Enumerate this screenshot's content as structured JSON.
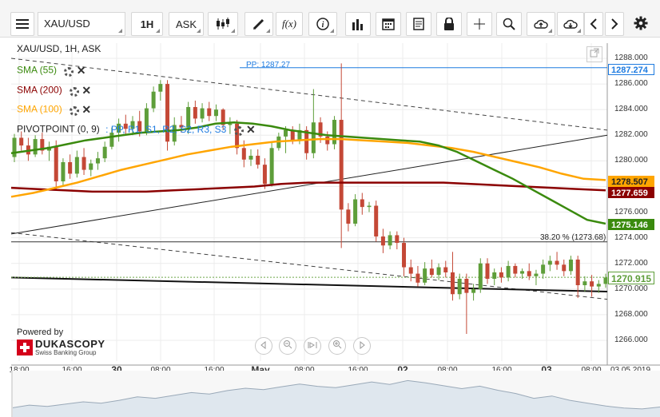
{
  "toolbar": {
    "menu_icon": "hamburger-icon",
    "symbol": "XAU/USD",
    "timeframe": "1H",
    "side": "ASK",
    "chart_type_icon": "candlestick-icon",
    "draw_icon": "pencil-icon",
    "fx_label": "f(x)",
    "info_icon": "info-icon",
    "volume_icon": "bar-volume-icon",
    "calendar_icon": "calendar-icon",
    "report_icon": "document-icon",
    "lock_icon": "lock-icon",
    "crosshair_icon": "crosshair-icon",
    "zoom_icon": "zoom-icon",
    "upload_icon": "cloud-upload-icon",
    "download_icon": "cloud-download-icon",
    "prev_icon": "chevron-left-icon",
    "next_icon": "chevron-right-icon",
    "settings_icon": "gear-icon"
  },
  "legend": {
    "title": "XAU/USD, 1H, ASK",
    "sma55": "SMA (55)",
    "sma200": "SMA (200)",
    "sma100": "SMA (100)",
    "pivot": "PIVOTPOINT (0, 9)",
    "pivot_items": ": PP, R1, S1, R2, S2, R3, S3"
  },
  "annotations": {
    "pp_label": "PP: 1287.27",
    "fib_label": "38.20 % (1273.68)"
  },
  "price_labels": {
    "pp": "1287.274",
    "sma100": "1278.507",
    "sma200": "1277.659",
    "sma55": "1275.146",
    "current": "1270.915"
  },
  "colors": {
    "sma55": "#3a8a0e",
    "sma200": "#8b0000",
    "sma100": "#ffa500",
    "pivot": "#1e7be0",
    "bull": "#5e9e3a",
    "bear": "#c44836"
  },
  "brand": {
    "powered_by": "Powered by",
    "name": "DUKASCOPY",
    "tagline": "Swiss Banking Group"
  },
  "y_axis": [
    "1288.000",
    "1286.000",
    "1284.000",
    "1282.000",
    "1280.000",
    "1278.000",
    "1276.000",
    "1274.000",
    "1272.000",
    "1270.000",
    "1268.000",
    "1266.000"
  ],
  "x_axis": [
    {
      "label": "18:00",
      "bold": false
    },
    {
      "label": "16:00",
      "bold": false
    },
    {
      "label": "30",
      "bold": true
    },
    {
      "label": "08:00",
      "bold": false
    },
    {
      "label": "16:00",
      "bold": false
    },
    {
      "label": "May",
      "bold": true
    },
    {
      "label": "08:00",
      "bold": false
    },
    {
      "label": "16:00",
      "bold": false
    },
    {
      "label": "02",
      "bold": true
    },
    {
      "label": "08:00",
      "bold": false
    },
    {
      "label": "16:00",
      "bold": false
    },
    {
      "label": "03",
      "bold": true
    },
    {
      "label": "08:00",
      "bold": false
    },
    {
      "label": "03.05.2019",
      "bold": false
    }
  ],
  "nav_buttons": [
    "scroll-left-icon",
    "zoom-out-icon",
    "fit-icon",
    "zoom-in-icon",
    "scroll-right-icon"
  ],
  "chart_data": {
    "type": "candlestick",
    "symbol": "XAU/USD",
    "interval": "1H",
    "ylim": [
      1265.0,
      1289.0
    ],
    "candles": [
      {
        "o": 1280.3,
        "h": 1282.1,
        "l": 1279.9,
        "c": 1281.8
      },
      {
        "o": 1281.8,
        "h": 1282.3,
        "l": 1280.8,
        "c": 1281.2
      },
      {
        "o": 1281.2,
        "h": 1281.8,
        "l": 1280.0,
        "c": 1280.5
      },
      {
        "o": 1280.5,
        "h": 1282.0,
        "l": 1280.3,
        "c": 1281.7
      },
      {
        "o": 1281.7,
        "h": 1282.2,
        "l": 1280.5,
        "c": 1280.8
      },
      {
        "o": 1280.8,
        "h": 1281.5,
        "l": 1280.0,
        "c": 1281.1
      },
      {
        "o": 1281.1,
        "h": 1281.6,
        "l": 1277.8,
        "c": 1278.4
      },
      {
        "o": 1278.4,
        "h": 1280.2,
        "l": 1278.0,
        "c": 1279.9
      },
      {
        "o": 1279.9,
        "h": 1280.5,
        "l": 1278.6,
        "c": 1279.0
      },
      {
        "o": 1279.0,
        "h": 1280.8,
        "l": 1278.7,
        "c": 1280.3
      },
      {
        "o": 1280.3,
        "h": 1281.0,
        "l": 1278.9,
        "c": 1279.3
      },
      {
        "o": 1279.3,
        "h": 1280.1,
        "l": 1278.8,
        "c": 1279.8
      },
      {
        "o": 1279.8,
        "h": 1280.7,
        "l": 1279.3,
        "c": 1280.2
      },
      {
        "o": 1280.2,
        "h": 1281.5,
        "l": 1279.9,
        "c": 1281.1
      },
      {
        "o": 1281.1,
        "h": 1282.6,
        "l": 1280.9,
        "c": 1282.2
      },
      {
        "o": 1282.2,
        "h": 1283.3,
        "l": 1281.5,
        "c": 1282.9
      },
      {
        "o": 1282.9,
        "h": 1283.6,
        "l": 1282.1,
        "c": 1282.5
      },
      {
        "o": 1282.5,
        "h": 1283.5,
        "l": 1282.0,
        "c": 1283.1
      },
      {
        "o": 1283.1,
        "h": 1283.9,
        "l": 1281.9,
        "c": 1282.3
      },
      {
        "o": 1282.3,
        "h": 1284.5,
        "l": 1282.0,
        "c": 1284.1
      },
      {
        "o": 1284.1,
        "h": 1285.8,
        "l": 1283.8,
        "c": 1285.4
      },
      {
        "o": 1285.4,
        "h": 1286.3,
        "l": 1284.7,
        "c": 1286.0
      },
      {
        "o": 1286.0,
        "h": 1286.3,
        "l": 1280.8,
        "c": 1281.5
      },
      {
        "o": 1281.5,
        "h": 1283.4,
        "l": 1281.2,
        "c": 1282.8
      },
      {
        "o": 1282.8,
        "h": 1283.5,
        "l": 1282.2,
        "c": 1282.6
      },
      {
        "o": 1282.6,
        "h": 1284.6,
        "l": 1282.1,
        "c": 1284.2
      },
      {
        "o": 1284.2,
        "h": 1284.7,
        "l": 1282.9,
        "c": 1283.3
      },
      {
        "o": 1283.3,
        "h": 1284.5,
        "l": 1283.0,
        "c": 1284.1
      },
      {
        "o": 1284.1,
        "h": 1284.6,
        "l": 1283.1,
        "c": 1283.5
      },
      {
        "o": 1283.5,
        "h": 1284.4,
        "l": 1283.1,
        "c": 1284.0
      },
      {
        "o": 1284.0,
        "h": 1284.1,
        "l": 1282.4,
        "c": 1282.8
      },
      {
        "o": 1282.8,
        "h": 1283.4,
        "l": 1282.1,
        "c": 1282.9
      },
      {
        "o": 1282.9,
        "h": 1283.2,
        "l": 1280.5,
        "c": 1281.0
      },
      {
        "o": 1281.0,
        "h": 1281.6,
        "l": 1279.5,
        "c": 1280.1
      },
      {
        "o": 1280.1,
        "h": 1280.9,
        "l": 1279.6,
        "c": 1280.4
      },
      {
        "o": 1280.4,
        "h": 1280.9,
        "l": 1279.4,
        "c": 1279.7
      },
      {
        "o": 1279.7,
        "h": 1280.2,
        "l": 1277.8,
        "c": 1278.2
      },
      {
        "o": 1278.2,
        "h": 1281.5,
        "l": 1278.0,
        "c": 1281.0
      },
      {
        "o": 1281.0,
        "h": 1282.2,
        "l": 1280.8,
        "c": 1281.9
      },
      {
        "o": 1281.9,
        "h": 1282.7,
        "l": 1280.6,
        "c": 1282.4
      },
      {
        "o": 1282.4,
        "h": 1282.7,
        "l": 1281.3,
        "c": 1281.6
      },
      {
        "o": 1281.6,
        "h": 1282.9,
        "l": 1281.3,
        "c": 1282.4
      },
      {
        "o": 1282.4,
        "h": 1282.7,
        "l": 1280.1,
        "c": 1280.6
      },
      {
        "o": 1280.6,
        "h": 1285.6,
        "l": 1280.2,
        "c": 1283.0
      },
      {
        "o": 1283.0,
        "h": 1283.4,
        "l": 1281.4,
        "c": 1281.9
      },
      {
        "o": 1281.9,
        "h": 1282.3,
        "l": 1280.8,
        "c": 1281.3
      },
      {
        "o": 1281.3,
        "h": 1283.5,
        "l": 1280.9,
        "c": 1283.2
      },
      {
        "o": 1283.2,
        "h": 1287.6,
        "l": 1273.2,
        "c": 1276.2
      },
      {
        "o": 1276.2,
        "h": 1276.7,
        "l": 1274.5,
        "c": 1275.1
      },
      {
        "o": 1275.1,
        "h": 1277.4,
        "l": 1274.9,
        "c": 1277.0
      },
      {
        "o": 1277.0,
        "h": 1277.5,
        "l": 1275.8,
        "c": 1276.4
      },
      {
        "o": 1276.4,
        "h": 1276.8,
        "l": 1276.0,
        "c": 1276.5
      },
      {
        "o": 1276.5,
        "h": 1276.9,
        "l": 1273.7,
        "c": 1274.1
      },
      {
        "o": 1274.1,
        "h": 1274.7,
        "l": 1272.8,
        "c": 1273.4
      },
      {
        "o": 1273.4,
        "h": 1274.5,
        "l": 1273.1,
        "c": 1274.2
      },
      {
        "o": 1274.2,
        "h": 1274.5,
        "l": 1273.1,
        "c": 1273.6
      },
      {
        "o": 1273.6,
        "h": 1274.0,
        "l": 1271.0,
        "c": 1271.7
      },
      {
        "o": 1271.7,
        "h": 1272.3,
        "l": 1270.6,
        "c": 1271.2
      },
      {
        "o": 1271.2,
        "h": 1271.8,
        "l": 1270.2,
        "c": 1270.5
      },
      {
        "o": 1270.5,
        "h": 1272.1,
        "l": 1270.3,
        "c": 1271.6
      },
      {
        "o": 1271.6,
        "h": 1272.3,
        "l": 1270.9,
        "c": 1271.1
      },
      {
        "o": 1271.1,
        "h": 1272.0,
        "l": 1270.7,
        "c": 1271.7
      },
      {
        "o": 1271.7,
        "h": 1272.2,
        "l": 1270.9,
        "c": 1271.3
      },
      {
        "o": 1271.3,
        "h": 1272.9,
        "l": 1269.1,
        "c": 1269.6
      },
      {
        "o": 1269.6,
        "h": 1271.2,
        "l": 1269.2,
        "c": 1270.8
      },
      {
        "o": 1270.8,
        "h": 1271.2,
        "l": 1266.5,
        "c": 1269.7
      },
      {
        "o": 1269.7,
        "h": 1270.4,
        "l": 1269.1,
        "c": 1270.0
      },
      {
        "o": 1270.0,
        "h": 1272.4,
        "l": 1269.7,
        "c": 1272.0
      },
      {
        "o": 1272.0,
        "h": 1272.4,
        "l": 1270.4,
        "c": 1270.8
      },
      {
        "o": 1270.8,
        "h": 1271.6,
        "l": 1270.3,
        "c": 1271.3
      },
      {
        "o": 1271.3,
        "h": 1271.7,
        "l": 1270.5,
        "c": 1270.9
      },
      {
        "o": 1270.9,
        "h": 1272.2,
        "l": 1270.6,
        "c": 1271.8
      },
      {
        "o": 1271.8,
        "h": 1272.0,
        "l": 1270.9,
        "c": 1271.2
      },
      {
        "o": 1271.2,
        "h": 1271.6,
        "l": 1270.8,
        "c": 1271.4
      },
      {
        "o": 1271.4,
        "h": 1272.0,
        "l": 1270.7,
        "c": 1271.0
      },
      {
        "o": 1271.0,
        "h": 1271.5,
        "l": 1270.3,
        "c": 1271.2
      },
      {
        "o": 1271.2,
        "h": 1272.3,
        "l": 1270.8,
        "c": 1271.9
      },
      {
        "o": 1271.9,
        "h": 1272.6,
        "l": 1271.4,
        "c": 1272.2
      },
      {
        "o": 1272.2,
        "h": 1272.9,
        "l": 1271.5,
        "c": 1271.9
      },
      {
        "o": 1271.9,
        "h": 1272.3,
        "l": 1271.0,
        "c": 1271.4
      },
      {
        "o": 1271.4,
        "h": 1272.6,
        "l": 1271.1,
        "c": 1272.3
      },
      {
        "o": 1272.3,
        "h": 1272.6,
        "l": 1269.3,
        "c": 1270.3
      },
      {
        "o": 1270.3,
        "h": 1271.0,
        "l": 1269.8,
        "c": 1270.6
      },
      {
        "o": 1270.6,
        "h": 1271.1,
        "l": 1269.4,
        "c": 1270.2
      },
      {
        "o": 1270.2,
        "h": 1270.7,
        "l": 1269.7,
        "c": 1270.4
      },
      {
        "o": 1270.4,
        "h": 1271.2,
        "l": 1270.1,
        "c": 1270.9
      }
    ],
    "sma55": [
      1280.6,
      1280.8,
      1281.0,
      1281.3,
      1281.6,
      1281.8,
      1282.0,
      1282.2,
      1282.3,
      1282.4,
      1282.6,
      1282.9,
      1283.0,
      1282.9,
      1282.7,
      1282.4,
      1282.2,
      1282.0,
      1281.9,
      1281.8,
      1281.7,
      1281.6,
      1281.5,
      1281.2,
      1280.7,
      1280.0,
      1279.3,
      1278.6,
      1277.8,
      1277.0,
      1276.2,
      1275.4,
      1275.1
    ],
    "sma100": [
      1277.2,
      1277.5,
      1277.9,
      1278.3,
      1278.8,
      1279.3,
      1279.7,
      1280.1,
      1280.5,
      1280.8,
      1281.1,
      1281.3,
      1281.5,
      1281.6,
      1281.7,
      1281.7,
      1281.6,
      1281.5,
      1281.4,
      1281.2,
      1281.0,
      1280.7,
      1280.3,
      1279.9,
      1279.5,
      1279.0,
      1278.6,
      1278.5
    ],
    "sma200": [
      1277.9,
      1277.8,
      1277.7,
      1277.6,
      1277.6,
      1277.6,
      1277.7,
      1277.8,
      1277.9,
      1278.0,
      1278.2,
      1278.3,
      1278.3,
      1278.3,
      1278.3,
      1278.3,
      1278.3,
      1278.2,
      1278.1,
      1278.0,
      1277.9,
      1277.8,
      1277.7
    ]
  }
}
